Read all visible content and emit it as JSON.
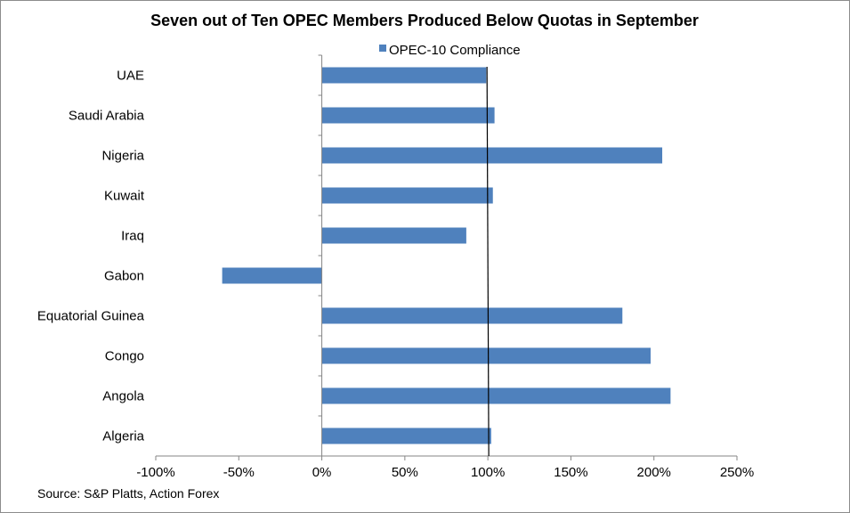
{
  "chart_data": {
    "type": "bar",
    "orientation": "horizontal",
    "title": "Seven out of Ten OPEC Members Produced Below Quotas in September",
    "categories": [
      "UAE",
      "Saudi Arabia",
      "Nigeria",
      "Kuwait",
      "Iraq",
      "Gabon",
      "Equatorial Guinea",
      "Congo",
      "Angola",
      "Algeria"
    ],
    "series": [
      {
        "name": "OPEC-10 Compliance",
        "color": "#4f81bd",
        "values": [
          99,
          104,
          205,
          103,
          87,
          -60,
          181,
          198,
          210,
          102
        ]
      }
    ],
    "xlim": [
      -100,
      250
    ],
    "x_ticks": [
      -100,
      -50,
      0,
      50,
      100,
      150,
      200,
      250
    ],
    "x_tick_labels": [
      "-100%",
      "-50%",
      "0%",
      "50%",
      "100%",
      "150%",
      "200%",
      "250%"
    ],
    "reference_line": 100,
    "legend_position": "top",
    "grid": false,
    "source": "Source: S&P Platts,  Action Forex"
  }
}
